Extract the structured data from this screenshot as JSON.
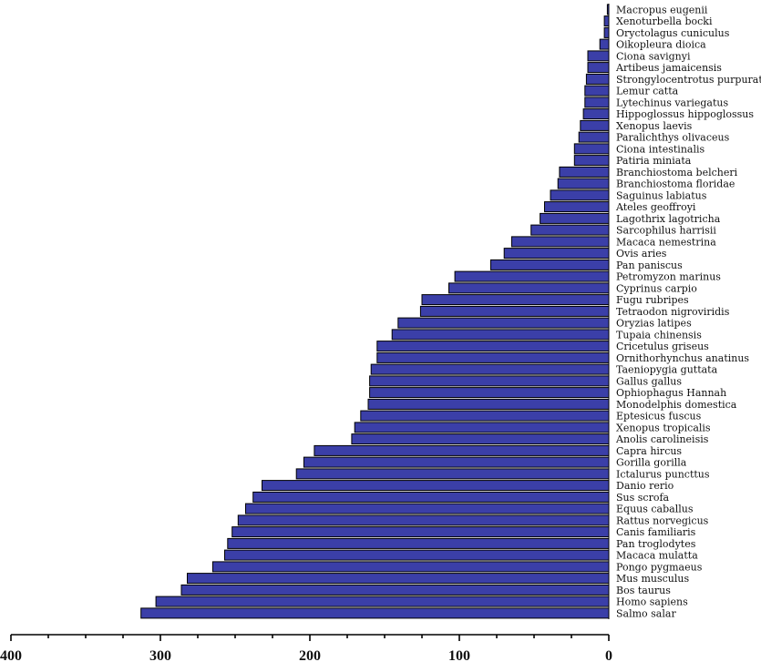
{
  "chart_data": {
    "type": "bar",
    "orientation": "horizontal",
    "x_direction": "reversed",
    "xlim": [
      0,
      400
    ],
    "xticks": [
      400,
      300,
      200,
      100,
      0
    ],
    "xlabel": "",
    "ylabel": "",
    "title": "",
    "bar_color": "#3b3fa8",
    "categories": [
      "Macropus eugenii",
      "Xenoturbella bocki",
      "Oryctolagus cuniculus",
      "Oikopleura dioica",
      "Ciona savignyi",
      "Artibeus jamaicensis",
      "Strongylocentrotus purpuratus",
      "Lemur catta",
      "Lytechinus variegatus",
      "Hippoglossus hippoglossus",
      "Xenopus laevis",
      "Paralichthys olivaceus",
      "Ciona intestinalis",
      "Patiria miniata",
      "Branchiostoma belcheri",
      "Branchiostoma floridae",
      "Saguinus labiatus",
      "Ateles geoffroyi",
      "Lagothrix lagotricha",
      "Sarcophilus harrisii",
      "Macaca nemestrina",
      "Ovis aries",
      "Pan paniscus",
      "Petromyzon marinus",
      "Cyprinus carpio",
      "Fugu rubripes",
      "Tetraodon nigroviridis",
      "Oryzias latipes",
      "Tupaia chinensis",
      "Cricetulus griseus",
      "Ornithorhynchus anatinus",
      "Taeniopygia guttata",
      "Gallus gallus",
      "Ophiophagus Hannah",
      "Monodelphis domestica",
      "Eptesicus fuscus",
      "Xenopus tropicalis",
      "Anolis carolineisis",
      "Capra hircus",
      "Gorilla gorilla",
      "Ictalurus puncttus",
      "Danio rerio",
      "Sus scrofa",
      "Equus caballus",
      "Rattus norvegicus",
      "Canis familiaris",
      "Pan troglodytes",
      "Macaca mulatta",
      "Pongo pygmaeus",
      "Mus musculus",
      "Bos taurus",
      "Homo sapiens",
      "Salmo salar"
    ],
    "values": [
      1,
      3,
      3,
      6,
      14,
      14,
      15,
      16,
      16,
      17,
      19,
      20,
      23,
      23,
      33,
      34,
      39,
      43,
      46,
      52,
      65,
      70,
      79,
      103,
      107,
      125,
      126,
      141,
      145,
      155,
      155,
      159,
      160,
      160,
      161,
      166,
      170,
      172,
      197,
      204,
      209,
      232,
      238,
      243,
      248,
      252,
      255,
      257,
      265,
      282,
      286,
      303,
      313
    ]
  }
}
